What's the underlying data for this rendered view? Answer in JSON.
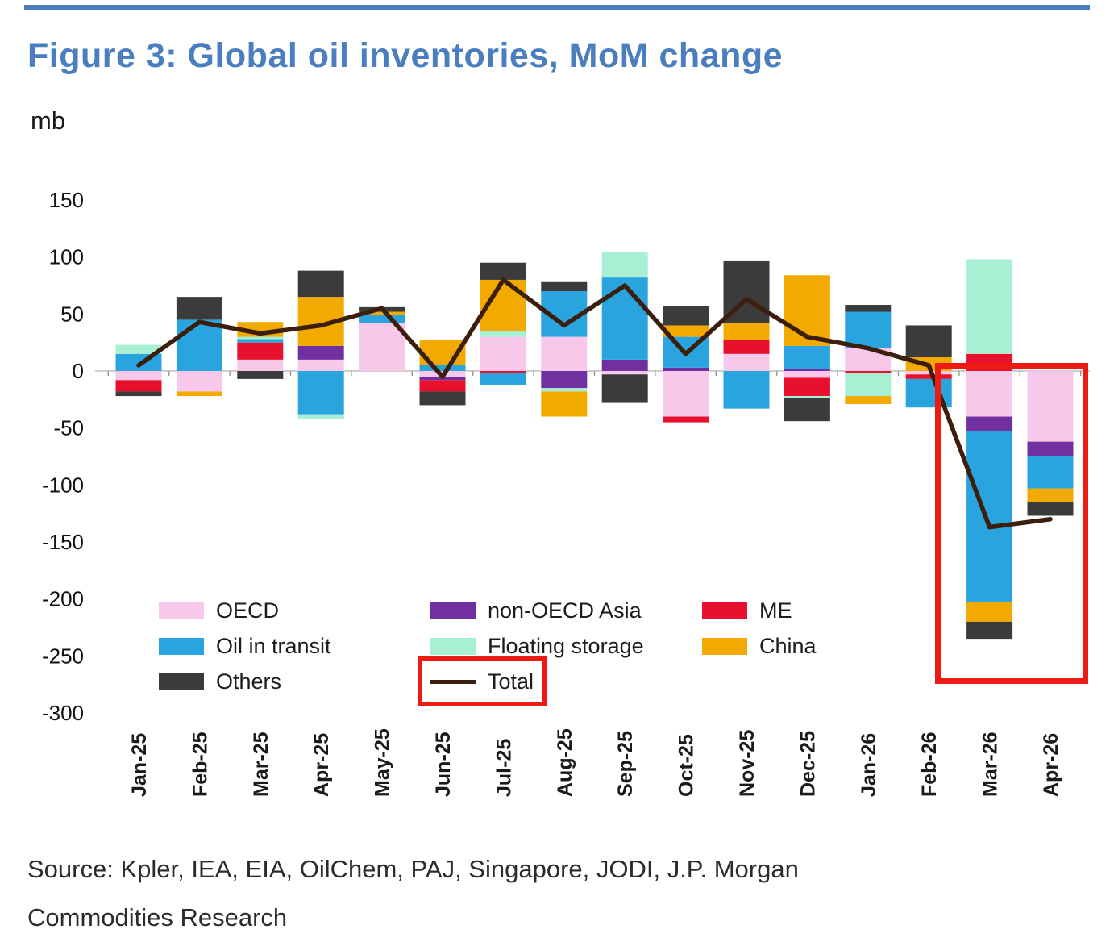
{
  "page": {
    "title": "Figure 3: Global oil inventories, MoM change",
    "source_line1": "Source: Kpler, IEA, EIA, OilChem, PAJ, Singapore, JODI, J.P. Morgan",
    "source_line2": "Commodities Research"
  },
  "chart_data": {
    "type": "bar",
    "subtype": "stacked-bar-with-line",
    "title": "Figure 3: Global oil inventories, MoM change",
    "unit_label": "mb",
    "xlabel": "",
    "ylabel": "mb",
    "ylim": [
      -300,
      150
    ],
    "yticks": [
      150,
      100,
      50,
      0,
      -50,
      -100,
      -150,
      -200,
      -250,
      -300
    ],
    "grid": false,
    "categories": [
      "Jan-25",
      "Feb-25",
      "Mar-25",
      "Apr-25",
      "May-25",
      "Jun-25",
      "Jul-25",
      "Aug-25",
      "Sep-25",
      "Oct-25",
      "Nov-25",
      "Dec-25",
      "Jan-26",
      "Feb-26",
      "Mar-26",
      "Apr-26"
    ],
    "series": [
      {
        "name": "OECD",
        "color": "#F8C8EA",
        "values": [
          -8,
          -18,
          10,
          10,
          42,
          -5,
          30,
          30,
          -3,
          -40,
          15,
          -6,
          20,
          -3,
          -40,
          -62
        ]
      },
      {
        "name": "non-OECD Asia",
        "color": "#7030A0",
        "values": [
          0,
          0,
          0,
          12,
          0,
          -3,
          0,
          -15,
          10,
          3,
          0,
          2,
          0,
          0,
          -13,
          -13
        ]
      },
      {
        "name": "ME",
        "color": "#E8112D",
        "values": [
          -10,
          0,
          15,
          0,
          0,
          -10,
          -2,
          0,
          0,
          -5,
          12,
          -16,
          -2,
          -4,
          15,
          0
        ]
      },
      {
        "name": "Oil in transit",
        "color": "#29A4DE",
        "values": [
          15,
          45,
          3,
          -38,
          7,
          5,
          -10,
          40,
          72,
          27,
          -33,
          20,
          32,
          -25,
          -150,
          -28
        ]
      },
      {
        "name": "Floating storage",
        "color": "#A8F0D3",
        "values": [
          8,
          0,
          2,
          -4,
          0,
          0,
          5,
          -3,
          22,
          0,
          0,
          -2,
          -20,
          0,
          83,
          0
        ]
      },
      {
        "name": "China",
        "color": "#F2A900",
        "values": [
          0,
          -4,
          13,
          43,
          3,
          22,
          45,
          -22,
          0,
          10,
          15,
          62,
          -7,
          12,
          -17,
          -12
        ]
      },
      {
        "name": "Others",
        "color": "#3B3B3B",
        "values": [
          -4,
          20,
          -7,
          23,
          4,
          -12,
          15,
          8,
          -25,
          17,
          55,
          -20,
          6,
          28,
          -15,
          -12
        ]
      }
    ],
    "total_line": {
      "name": "Total",
      "color": "#3C1E0D",
      "values": [
        5,
        43,
        33,
        40,
        55,
        -5,
        80,
        40,
        75,
        15,
        63,
        30,
        20,
        5,
        -137,
        -130
      ]
    },
    "legend": {
      "position": "inside-lower-left",
      "items": [
        {
          "label": "OECD",
          "type": "swatch",
          "boxed": false
        },
        {
          "label": "non-OECD Asia",
          "type": "swatch",
          "boxed": false
        },
        {
          "label": "ME",
          "type": "swatch",
          "boxed": false
        },
        {
          "label": "Oil in transit",
          "type": "swatch",
          "boxed": false
        },
        {
          "label": "Floating storage",
          "type": "swatch",
          "boxed": false
        },
        {
          "label": "China",
          "type": "swatch",
          "boxed": false
        },
        {
          "label": "Others",
          "type": "swatch",
          "boxed": false
        },
        {
          "label": "Total",
          "type": "line",
          "boxed": true
        }
      ]
    },
    "annotations": [
      "red highlight box around Mar-26 and Apr-26 negative bars",
      "red highlight box around Total legend entry"
    ]
  }
}
